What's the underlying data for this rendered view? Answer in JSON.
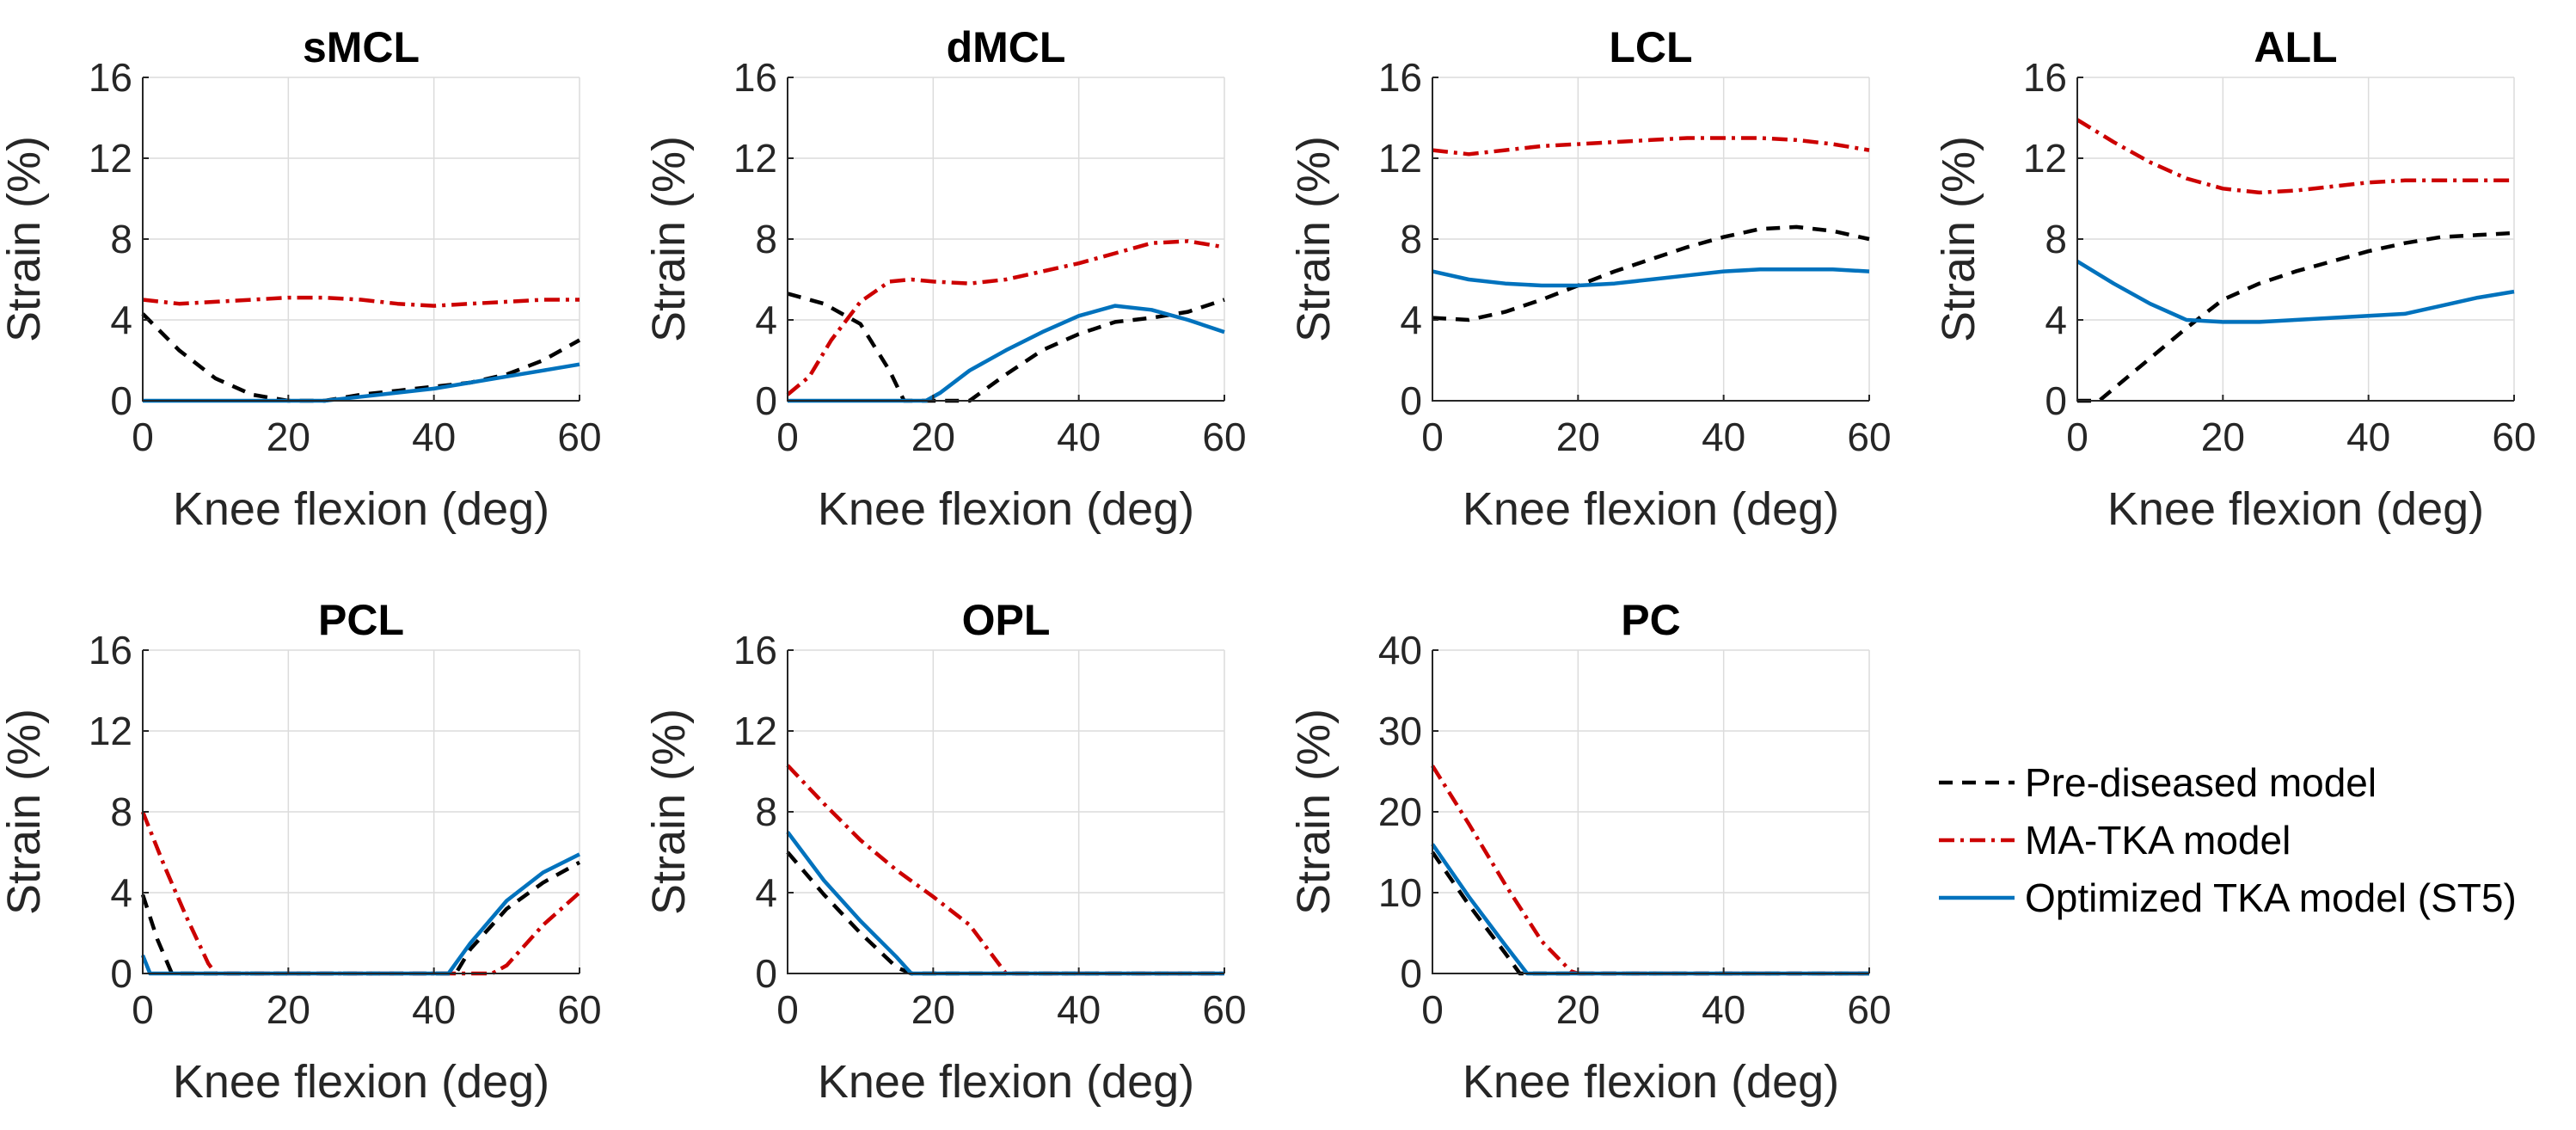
{
  "chart_data": [
    {
      "type": "line",
      "title": "sMCL",
      "xlabel": "Knee flexion (deg)",
      "ylabel": "Strain (%)",
      "xlim": [
        0,
        60
      ],
      "ylim": [
        0,
        16
      ],
      "xticks": [
        0,
        20,
        40,
        60
      ],
      "yticks": [
        0,
        4,
        8,
        12,
        16
      ],
      "series": [
        {
          "name": "Pre-diseased model",
          "x": [
            0,
            5,
            10,
            15,
            20,
            25,
            30,
            35,
            40,
            45,
            50,
            55,
            60
          ],
          "y": [
            4.3,
            2.5,
            1.1,
            0.3,
            0,
            0,
            0.3,
            0.5,
            0.7,
            0.9,
            1.3,
            2.0,
            3.0
          ]
        },
        {
          "name": "MA-TKA model",
          "x": [
            0,
            5,
            10,
            15,
            20,
            25,
            30,
            35,
            40,
            45,
            50,
            55,
            60
          ],
          "y": [
            5.0,
            4.8,
            4.9,
            5.0,
            5.1,
            5.1,
            5.0,
            4.8,
            4.7,
            4.8,
            4.9,
            5.0,
            5.0
          ]
        },
        {
          "name": "Optimized TKA model (ST5)",
          "x": [
            0,
            5,
            10,
            15,
            20,
            25,
            30,
            35,
            40,
            45,
            50,
            55,
            60
          ],
          "y": [
            0,
            0,
            0,
            0,
            0,
            0,
            0.2,
            0.4,
            0.6,
            0.9,
            1.2,
            1.5,
            1.8
          ]
        }
      ]
    },
    {
      "type": "line",
      "title": "dMCL",
      "xlabel": "Knee flexion (deg)",
      "ylabel": "Strain (%)",
      "xlim": [
        0,
        60
      ],
      "ylim": [
        0,
        16
      ],
      "xticks": [
        0,
        20,
        40,
        60
      ],
      "yticks": [
        0,
        4,
        8,
        12,
        16
      ],
      "series": [
        {
          "name": "Pre-diseased model",
          "x": [
            0,
            5,
            10,
            14,
            16,
            20,
            25,
            30,
            35,
            40,
            45,
            50,
            55,
            60
          ],
          "y": [
            5.3,
            4.8,
            3.8,
            1.5,
            0,
            0,
            0,
            1.3,
            2.5,
            3.3,
            3.9,
            4.1,
            4.4,
            5.0
          ]
        },
        {
          "name": "MA-TKA model",
          "x": [
            0,
            3,
            6,
            10,
            14,
            17,
            20,
            25,
            30,
            35,
            40,
            45,
            50,
            55,
            60
          ],
          "y": [
            0.3,
            1.2,
            3.0,
            4.9,
            5.9,
            6.0,
            5.9,
            5.8,
            6.0,
            6.4,
            6.8,
            7.3,
            7.8,
            7.9,
            7.6
          ]
        },
        {
          "name": "Optimized TKA model (ST5)",
          "x": [
            0,
            5,
            10,
            15,
            19,
            21,
            25,
            30,
            35,
            40,
            45,
            50,
            55,
            60
          ],
          "y": [
            0,
            0,
            0,
            0,
            0,
            0.4,
            1.5,
            2.5,
            3.4,
            4.2,
            4.7,
            4.5,
            4.0,
            3.4
          ]
        }
      ]
    },
    {
      "type": "line",
      "title": "LCL",
      "xlabel": "Knee flexion (deg)",
      "ylabel": "Strain (%)",
      "xlim": [
        0,
        60
      ],
      "ylim": [
        0,
        16
      ],
      "xticks": [
        0,
        20,
        40,
        60
      ],
      "yticks": [
        0,
        4,
        8,
        12,
        16
      ],
      "series": [
        {
          "name": "Pre-diseased model",
          "x": [
            0,
            5,
            10,
            15,
            20,
            25,
            30,
            35,
            40,
            45,
            50,
            55,
            60
          ],
          "y": [
            4.1,
            4.0,
            4.4,
            5.0,
            5.7,
            6.4,
            7.0,
            7.6,
            8.1,
            8.5,
            8.6,
            8.4,
            8.0
          ]
        },
        {
          "name": "MA-TKA model",
          "x": [
            0,
            5,
            10,
            15,
            20,
            25,
            30,
            35,
            40,
            45,
            50,
            55,
            60
          ],
          "y": [
            12.4,
            12.2,
            12.4,
            12.6,
            12.7,
            12.8,
            12.9,
            13.0,
            13.0,
            13.0,
            12.9,
            12.7,
            12.4
          ]
        },
        {
          "name": "Optimized TKA model (ST5)",
          "x": [
            0,
            5,
            10,
            15,
            20,
            25,
            30,
            35,
            40,
            45,
            50,
            55,
            60
          ],
          "y": [
            6.4,
            6.0,
            5.8,
            5.7,
            5.7,
            5.8,
            6.0,
            6.2,
            6.4,
            6.5,
            6.5,
            6.5,
            6.4
          ]
        }
      ]
    },
    {
      "type": "line",
      "title": "ALL",
      "xlabel": "Knee flexion (deg)",
      "ylabel": "Strain (%)",
      "xlim": [
        0,
        60
      ],
      "ylim": [
        0,
        16
      ],
      "xticks": [
        0,
        20,
        40,
        60
      ],
      "yticks": [
        0,
        4,
        8,
        12,
        16
      ],
      "series": [
        {
          "name": "Pre-diseased model",
          "x": [
            0,
            3,
            5,
            10,
            15,
            20,
            25,
            30,
            35,
            40,
            45,
            50,
            55,
            60
          ],
          "y": [
            0,
            0,
            0.6,
            2.1,
            3.6,
            5.0,
            5.8,
            6.4,
            6.9,
            7.4,
            7.8,
            8.1,
            8.2,
            8.3
          ]
        },
        {
          "name": "MA-TKA model",
          "x": [
            0,
            5,
            10,
            15,
            20,
            25,
            30,
            35,
            40,
            45,
            50,
            55,
            60
          ],
          "y": [
            13.9,
            12.8,
            11.8,
            11.0,
            10.5,
            10.3,
            10.4,
            10.6,
            10.8,
            10.9,
            10.9,
            10.9,
            10.9
          ]
        },
        {
          "name": "Optimized TKA model (ST5)",
          "x": [
            0,
            5,
            10,
            15,
            20,
            25,
            30,
            35,
            40,
            45,
            50,
            55,
            60
          ],
          "y": [
            6.9,
            5.8,
            4.8,
            4.0,
            3.9,
            3.9,
            4.0,
            4.1,
            4.2,
            4.3,
            4.7,
            5.1,
            5.4
          ]
        }
      ]
    },
    {
      "type": "line",
      "title": "PCL",
      "xlabel": "Knee flexion (deg)",
      "ylabel": "Strain (%)",
      "xlim": [
        0,
        60
      ],
      "ylim": [
        0,
        16
      ],
      "xticks": [
        0,
        20,
        40,
        60
      ],
      "yticks": [
        0,
        4,
        8,
        12,
        16
      ],
      "series": [
        {
          "name": "Pre-diseased model",
          "x": [
            0,
            2,
            4,
            10,
            20,
            30,
            40,
            43,
            45,
            50,
            55,
            60
          ],
          "y": [
            3.9,
            1.7,
            0,
            0,
            0,
            0,
            0,
            0,
            1.2,
            3.2,
            4.5,
            5.5
          ]
        },
        {
          "name": "MA-TKA model",
          "x": [
            0,
            3,
            6,
            9,
            10,
            20,
            30,
            40,
            48,
            50,
            55,
            60
          ],
          "y": [
            8.0,
            5.3,
            2.8,
            0.5,
            0,
            0,
            0,
            0,
            0,
            0.4,
            2.4,
            4.0
          ]
        },
        {
          "name": "Optimized TKA model (ST5)",
          "x": [
            0,
            1,
            10,
            20,
            30,
            40,
            42,
            45,
            50,
            55,
            60
          ],
          "y": [
            0.9,
            0,
            0,
            0,
            0,
            0,
            0,
            1.5,
            3.6,
            5.0,
            5.9
          ]
        }
      ]
    },
    {
      "type": "line",
      "title": "OPL",
      "xlabel": "Knee flexion (deg)",
      "ylabel": "Strain (%)",
      "xlim": [
        0,
        60
      ],
      "ylim": [
        0,
        16
      ],
      "xticks": [
        0,
        20,
        40,
        60
      ],
      "yticks": [
        0,
        4,
        8,
        12,
        16
      ],
      "series": [
        {
          "name": "Pre-diseased model",
          "x": [
            0,
            5,
            10,
            15,
            17,
            20,
            30,
            40,
            50,
            60
          ],
          "y": [
            6.0,
            3.9,
            2.0,
            0.3,
            0,
            0,
            0,
            0,
            0,
            0
          ]
        },
        {
          "name": "MA-TKA model",
          "x": [
            0,
            5,
            10,
            15,
            20,
            25,
            30,
            40,
            50,
            60
          ],
          "y": [
            10.3,
            8.4,
            6.6,
            5.1,
            3.8,
            2.4,
            0,
            0,
            0,
            0
          ]
        },
        {
          "name": "Optimized TKA model (ST5)",
          "x": [
            0,
            5,
            10,
            15,
            17,
            20,
            30,
            40,
            50,
            60
          ],
          "y": [
            7.0,
            4.6,
            2.6,
            0.8,
            0,
            0,
            0,
            0,
            0,
            0
          ]
        }
      ]
    },
    {
      "type": "line",
      "title": "PC",
      "xlabel": "Knee flexion (deg)",
      "ylabel": "Strain (%)",
      "xlim": [
        0,
        60
      ],
      "ylim": [
        0,
        40
      ],
      "xticks": [
        0,
        20,
        40,
        60
      ],
      "yticks": [
        0,
        10,
        20,
        30,
        40
      ],
      "series": [
        {
          "name": "Pre-diseased model",
          "x": [
            0,
            5,
            10,
            12,
            20,
            30,
            40,
            50,
            60
          ],
          "y": [
            15.0,
            8.5,
            2.5,
            0,
            0,
            0,
            0,
            0,
            0
          ]
        },
        {
          "name": "MA-TKA model",
          "x": [
            0,
            5,
            10,
            15,
            19,
            20,
            30,
            40,
            50,
            60
          ],
          "y": [
            25.7,
            18.5,
            11.0,
            4.0,
            0.3,
            0,
            0,
            0,
            0,
            0
          ]
        },
        {
          "name": "Optimized TKA model (ST5)",
          "x": [
            0,
            5,
            10,
            13,
            20,
            30,
            40,
            50,
            60
          ],
          "y": [
            16.0,
            9.5,
            3.5,
            0,
            0,
            0,
            0,
            0,
            0
          ]
        }
      ]
    }
  ],
  "legend": {
    "placement": "lower-right",
    "entries": [
      {
        "label": "Pre-diseased model",
        "color": "#000000",
        "style": "dashed"
      },
      {
        "label": "MA-TKA model",
        "color": "#cc0000",
        "style": "dash-dot"
      },
      {
        "label": "Optimized TKA model (ST5)",
        "color": "#0072bd",
        "style": "solid"
      }
    ]
  },
  "colors": [
    "#000000",
    "#cc0000",
    "#0072bd"
  ]
}
